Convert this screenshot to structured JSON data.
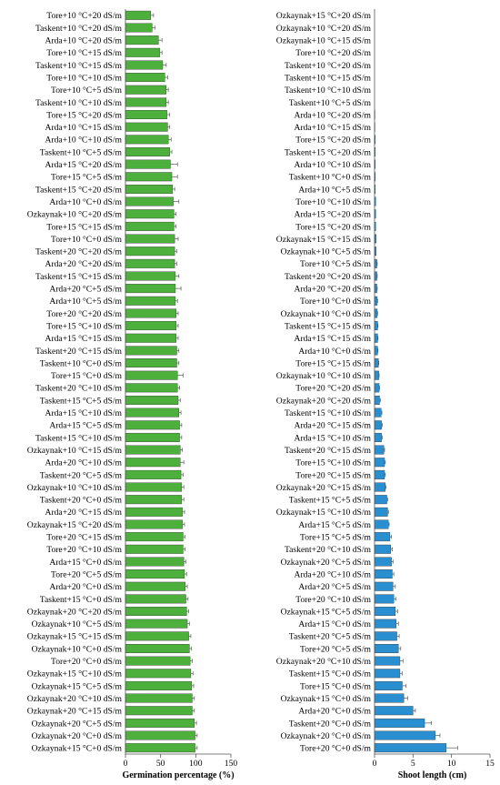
{
  "chart_data": [
    {
      "type": "bar",
      "orientation": "horizontal",
      "xlabel": "Germination percentage (%)",
      "xlim": [
        0,
        150
      ],
      "xticks": [
        "0",
        "50",
        "100",
        "150"
      ],
      "bar_color": "#4daf3c",
      "error_bars": true,
      "grid": false,
      "categories": [
        "Tore+10 °C+20 dS/m",
        "Taskent+10 °C+20 dS/m",
        "Arda+10 °C+20 dS/m",
        "Tore+10 °C+15 dS/m",
        "Taskent+10 °C+15 dS/m",
        "Tore+10 °C+10 dS/m",
        "Tore+10 °C+5 dS/m",
        "Taskent+10 °C+10 dS/m",
        "Tore+15 °C+20 dS/m",
        "Arda+10 °C+15 dS/m",
        "Arda+10 °C+10 dS/m",
        "Taskent+10 °C+5 dS/m",
        "Arda+15 °C+20 dS/m",
        "Tore+15 °C+5 dS/m",
        "Taskent+15 °C+20 dS/m",
        "Arda+10 °C+0 dS/m",
        "Ozkaynak+10 °C+20 dS/m",
        "Tore+15 °C+15 dS/m",
        "Tore+10 °C+0 dS/m",
        "Taskent+20 °C+20 dS/m",
        "Arda+20 °C+20 dS/m",
        "Taskent+15 °C+15 dS/m",
        "Arda+20 °C+5 dS/m",
        "Arda+10 °C+5 dS/m",
        "Tore+20 °C+20 dS/m",
        "Tore+15 °C+10 dS/m",
        "Arda+15 °C+15 dS/m",
        "Taskent+20 °C+15 dS/m",
        "Taskent+10 °C+0 dS/m",
        "Tore+15 °C+0 dS/m",
        "Taskent+20 °C+10 dS/m",
        "Taskent+15 °C+5 dS/m",
        "Arda+15 °C+10 dS/m",
        "Arda+15 °C+5 dS/m",
        "Taskent+15 °C+10 dS/m",
        "Ozkaynak+10 °C+15 dS/m",
        "Arda+20 °C+10 dS/m",
        "Taskent+20 °C+5 dS/m",
        "Ozkaynak+10 °C+10 dS/m",
        "Taskent+20 °C+0 dS/m",
        "Arda+20 °C+15 dS/m",
        "Ozkaynak+15 °C+20 dS/m",
        "Tore+20 °C+15 dS/m",
        "Tore+20 °C+10 dS/m",
        "Arda+15 °C+0 dS/m",
        "Tore+20 °C+5 dS/m",
        "Arda+20 °C+0 dS/m",
        "Taskent+15 °C+0 dS/m",
        "Ozkaynak+20 °C+20 dS/m",
        "Ozkaynak+10 °C+5 dS/m",
        "Ozkaynak+15 °C+15 dS/m",
        "Ozkaynak+10 °C+0 dS/m",
        "Tore+20 °C+0 dS/m",
        "Ozkaynak+15 °C+10 dS/m",
        "Ozkaynak+15 °C+5 dS/m",
        "Ozkaynak+20 °C+10 dS/m",
        "Ozkaynak+20 °C+15 dS/m",
        "Ozkaynak+20 °C+5 dS/m",
        "Ozkaynak+20 °C+0 dS/m",
        "Ozkaynak+15 °C+0 dS/m"
      ],
      "values": [
        36,
        38,
        47,
        49,
        53,
        56,
        58,
        58,
        59,
        60,
        61,
        63,
        64,
        66,
        67,
        68,
        69,
        69,
        70,
        70,
        70,
        71,
        71,
        71,
        72,
        72,
        72,
        73,
        73,
        74,
        74,
        75,
        76,
        77,
        77,
        78,
        78,
        79,
        80,
        80,
        81,
        81,
        82,
        82,
        83,
        84,
        85,
        86,
        87,
        88,
        90,
        91,
        92,
        93,
        94,
        95,
        95,
        98,
        99,
        99
      ],
      "errors": [
        4,
        4,
        5,
        3,
        5,
        4,
        3,
        3,
        4,
        3,
        4,
        3,
        10,
        8,
        3,
        8,
        3,
        3,
        5,
        3,
        3,
        5,
        8,
        3,
        3,
        3,
        3,
        3,
        3,
        8,
        3,
        3,
        3,
        3,
        3,
        3,
        5,
        3,
        3,
        3,
        3,
        3,
        3,
        3,
        3,
        3,
        3,
        3,
        3,
        3,
        3,
        3,
        3,
        3,
        3,
        3,
        3,
        3,
        3,
        3
      ]
    },
    {
      "type": "bar",
      "orientation": "horizontal",
      "xlabel": "Shoot length (cm)",
      "xlim": [
        0,
        15
      ],
      "xticks": [
        "0",
        "5",
        "10",
        "15"
      ],
      "bar_color": "#2a8fd1",
      "error_bars": true,
      "grid": false,
      "categories": [
        "Ozkaynak+15 °C+20 dS/m",
        "Ozkaynak+10 °C+20 dS/m",
        "Ozkaynak+10 °C+15 dS/m",
        "Tore+10 °C+20 dS/m",
        "Taskent+10 °C+20 dS/m",
        "Taskent+10 °C+15 dS/m",
        "Taskent+10 °C+10 dS/m",
        "Taskent+10 °C+5 dS/m",
        "Arda+10 °C+20 dS/m",
        "Arda+10 °C+15 dS/m",
        "Tore+15 °C+20 dS/m",
        "Taskent+15 °C+20 dS/m",
        "Arda+10 °C+10 dS/m",
        "Taskent+10 °C+0 dS/m",
        "Arda+10 °C+5 dS/m",
        "Tore+10 °C+10 dS/m",
        "Arda+15 °C+20 dS/m",
        "Tore+15 °C+20 dS/m",
        "Ozkaynak+15 °C+15 dS/m",
        "Ozkaynak+10 °C+5 dS/m",
        "Tore+10 °C+5 dS/m",
        "Taskent+20 °C+20 dS/m",
        "Arda+20 °C+20 dS/m",
        "Tore+10 °C+0 dS/m",
        "Ozkaynak+10 °C+0 dS/m",
        "Taskent+15 °C+15 dS/m",
        "Arda+15 °C+15 dS/m",
        "Arda+10 °C+0 dS/m",
        "Tore+15 °C+15 dS/m",
        "Ozkaynak+10 °C+10 dS/m",
        "Tore+20 °C+20 dS/m",
        "Ozkaynak+20 °C+20 dS/m",
        "Taskent+15 °C+10 dS/m",
        "Arda+20 °C+15 dS/m",
        "Arda+15 °C+10 dS/m",
        "Taskent+20 °C+15 dS/m",
        "Tore+15 °C+10 dS/m",
        "Tore+20 °C+15 dS/m",
        "Ozkaynak+20 °C+15 dS/m",
        "Taskent+15 °C+5 dS/m",
        "Ozkaynak+15 °C+10 dS/m",
        "Arda+15 °C+5 dS/m",
        "Tore+15 °C+5 dS/m",
        "Taskent+20 °C+10 dS/m",
        "Ozkaynak+20 °C+5 dS/m",
        "Arda+20 °C+10 dS/m",
        "Arda+20 °C+5 dS/m",
        "Tore+20 °C+10 dS/m",
        "Ozkaynak+15 °C+5 dS/m",
        "Arda+15 °C+0 dS/m",
        "Taskent+20 °C+5 dS/m",
        "Tore+20 °C+5 dS/m",
        "Ozkaynak+20 °C+10 dS/m",
        "Taskent+15 °C+0 dS/m",
        "Tore+15 °C+0 dS/m",
        "Ozkaynak+15 °C+0 dS/m",
        "Arda+20 °C+0 dS/m",
        "Taskent+20 °C+0 dS/m",
        "Ozkaynak+20 °C+0 dS/m",
        "Tore+20 °C+0 dS/m"
      ],
      "values": [
        0,
        0,
        0,
        0,
        0,
        0,
        0,
        0,
        0.05,
        0.05,
        0.1,
        0.1,
        0.1,
        0.1,
        0.1,
        0.15,
        0.15,
        0.15,
        0.2,
        0.2,
        0.3,
        0.3,
        0.3,
        0.35,
        0.35,
        0.4,
        0.4,
        0.4,
        0.5,
        0.55,
        0.6,
        0.65,
        0.85,
        0.9,
        0.9,
        1.2,
        1.3,
        1.3,
        1.4,
        1.6,
        1.7,
        1.8,
        2.0,
        2.1,
        2.2,
        2.3,
        2.4,
        2.5,
        2.7,
        2.8,
        2.9,
        3.1,
        3.3,
        3.3,
        3.6,
        3.8,
        5.0,
        6.5,
        7.9,
        9.3
      ],
      "errors": [
        0,
        0,
        0,
        0,
        0,
        0,
        0,
        0,
        0,
        0,
        0,
        0,
        0,
        0,
        0,
        0,
        0,
        0,
        0,
        0,
        0.05,
        0.05,
        0.05,
        0.05,
        0.05,
        0.05,
        0.05,
        0.05,
        0.05,
        0.05,
        0.05,
        0.1,
        0.1,
        0.1,
        0.1,
        0.1,
        0.1,
        0.1,
        0.1,
        0.1,
        0.1,
        0.1,
        0.2,
        0.2,
        0.2,
        0.2,
        0.3,
        0.3,
        0.3,
        0.3,
        0.3,
        0.3,
        0.4,
        0.3,
        0.5,
        0.5,
        0.3,
        0.9,
        0.6,
        1.5
      ]
    }
  ]
}
